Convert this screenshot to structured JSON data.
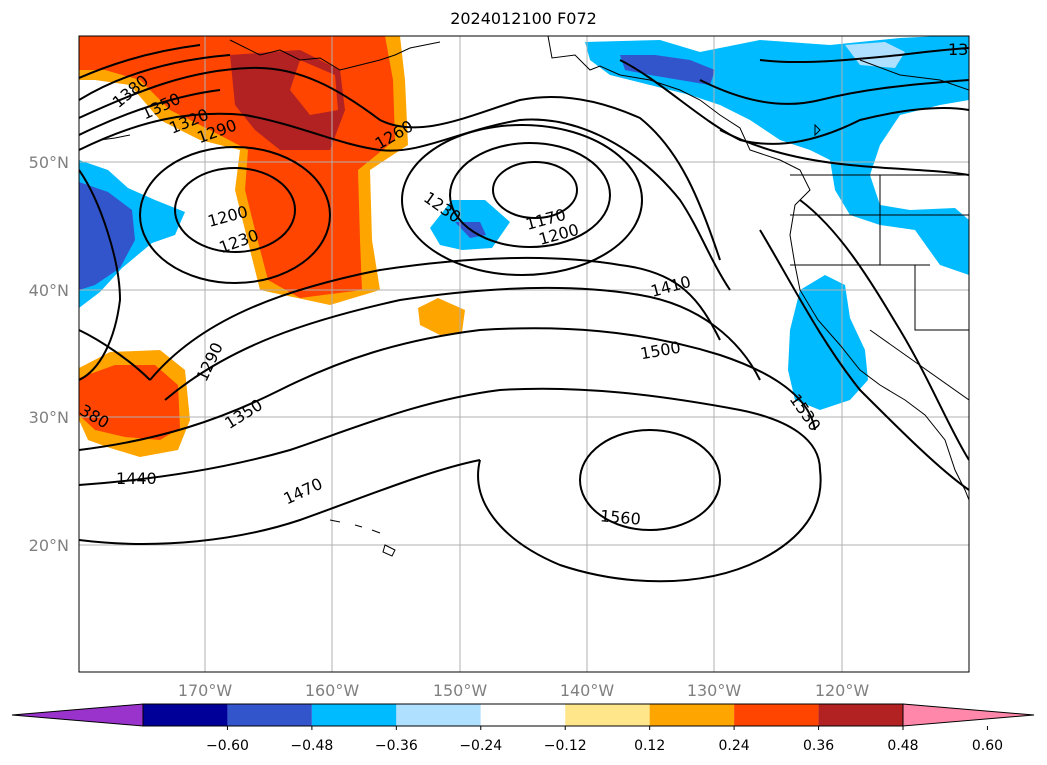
{
  "title": "2024012100 F072",
  "map": {
    "lat_labels": [
      "50°N",
      "40°N",
      "30°N",
      "20°N"
    ],
    "lon_labels": [
      "170°W",
      "160°W",
      "150°W",
      "140°W",
      "130°W",
      "120°W"
    ],
    "contour_labels": [
      "1380",
      "1350",
      "1320",
      "1290",
      "1260",
      "1200",
      "1230",
      "1230",
      "1170",
      "1200",
      "1410",
      "1500",
      "1290",
      "1350",
      "380",
      "1440",
      "1470",
      "1530",
      "1560",
      "13"
    ]
  },
  "colorbar": {
    "ticks": [
      "−0.60",
      "−0.48",
      "−0.36",
      "−0.24",
      "−0.12",
      "0.12",
      "0.24",
      "0.36",
      "0.48",
      "0.60"
    ],
    "colors": [
      "#9933cc",
      "#000099",
      "#3355cc",
      "#00bbff",
      "#b0e0ff",
      "#ffffff",
      "#ffe68a",
      "#ffa500",
      "#ff4500",
      "#b22222",
      "#ff88aa"
    ]
  }
}
